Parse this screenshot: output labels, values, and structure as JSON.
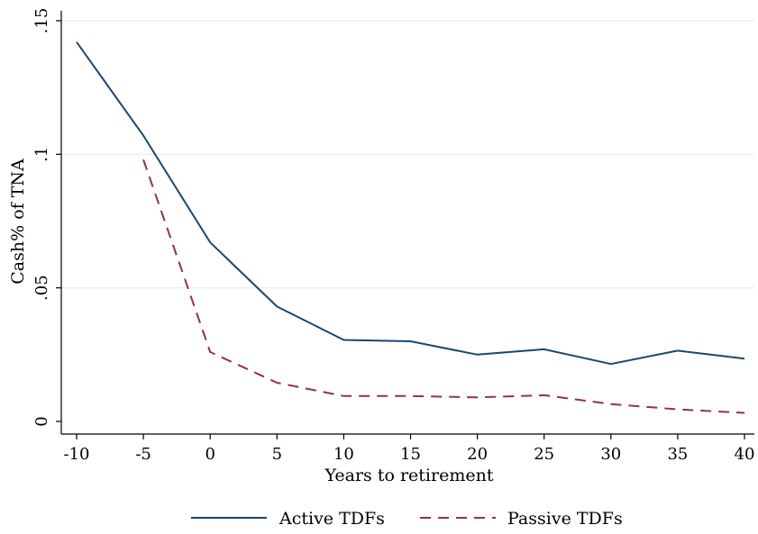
{
  "chart_data": {
    "type": "line",
    "xlabel": "Years to retirement",
    "ylabel": "Cash% of TNA",
    "xlim": [
      -10,
      40
    ],
    "ylim": [
      0,
      0.15
    ],
    "x_ticks": [
      -10,
      -5,
      0,
      5,
      10,
      15,
      20,
      25,
      30,
      35,
      40
    ],
    "x_tick_labels": [
      "-10",
      "-5",
      "0",
      "5",
      "10",
      "15",
      "20",
      "25",
      "30",
      "35",
      "40"
    ],
    "y_ticks": [
      0,
      0.05,
      0.1,
      0.15
    ],
    "y_tick_labels": [
      "0",
      ".05",
      ".1",
      ".15"
    ],
    "grid": true,
    "legend_position": "bottom",
    "series": [
      {
        "name": "Active TDFs",
        "color": "#1a476f",
        "style": "solid",
        "x": [
          -10,
          -5,
          0,
          5,
          10,
          15,
          20,
          25,
          30,
          35,
          40
        ],
        "y": [
          0.142,
          0.107,
          0.067,
          0.043,
          0.0305,
          0.03,
          0.025,
          0.027,
          0.0215,
          0.0265,
          0.0235
        ]
      },
      {
        "name": "Passive TDFs",
        "color": "#90353b",
        "style": "dashed",
        "x": [
          -5,
          0,
          5,
          10,
          15,
          20,
          25,
          30,
          35,
          40
        ],
        "y": [
          0.098,
          0.026,
          0.0145,
          0.0095,
          0.0095,
          0.009,
          0.0098,
          0.0065,
          0.0045,
          0.0032
        ]
      }
    ]
  }
}
